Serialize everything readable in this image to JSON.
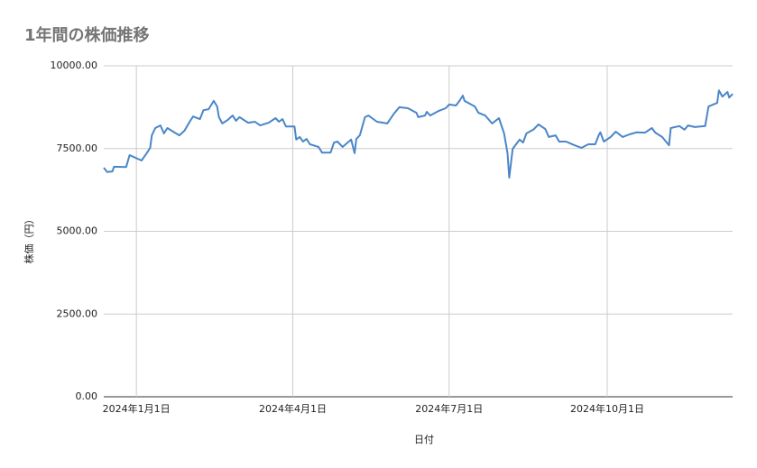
{
  "chart_data": {
    "type": "line",
    "title": "1年間の株価推移",
    "x_label": "日付",
    "y_label": "株価（円）",
    "grid": true,
    "xlim": [
      "2023-12-13",
      "2024-12-13"
    ],
    "xticks": [
      {
        "value": "2024-01-01",
        "label": "2024年1月1日"
      },
      {
        "value": "2024-04-01",
        "label": "2024年4月1日"
      },
      {
        "value": "2024-07-01",
        "label": "2024年7月1日"
      },
      {
        "value": "2024-10-01",
        "label": "2024年10月1日"
      }
    ],
    "ylim": [
      0,
      10000
    ],
    "yticks": [
      {
        "value": 0,
        "label": "0.00"
      },
      {
        "value": 2500,
        "label": "2500.00"
      },
      {
        "value": 5000,
        "label": "5000.00"
      },
      {
        "value": 7500,
        "label": "7500.00"
      },
      {
        "value": 10000,
        "label": "10000.00"
      }
    ],
    "x": [
      "2023-12-13",
      "2023-12-15",
      "2023-12-18",
      "2023-12-19",
      "2023-12-26",
      "2023-12-28",
      "2024-01-04",
      "2024-01-07",
      "2024-01-09",
      "2024-01-10",
      "2024-01-12",
      "2024-01-15",
      "2024-01-17",
      "2024-01-19",
      "2024-01-24",
      "2024-01-26",
      "2024-01-29",
      "2024-02-01",
      "2024-02-03",
      "2024-02-07",
      "2024-02-09",
      "2024-02-12",
      "2024-02-15",
      "2024-02-17",
      "2024-02-18",
      "2024-02-20",
      "2024-02-23",
      "2024-02-26",
      "2024-02-28",
      "2024-03-01",
      "2024-03-06",
      "2024-03-10",
      "2024-03-13",
      "2024-03-18",
      "2024-03-22",
      "2024-03-24",
      "2024-03-26",
      "2024-03-28",
      "2024-04-02",
      "2024-04-03",
      "2024-04-05",
      "2024-04-07",
      "2024-04-09",
      "2024-04-11",
      "2024-04-16",
      "2024-04-18",
      "2024-04-23",
      "2024-04-25",
      "2024-04-27",
      "2024-04-30",
      "2024-05-05",
      "2024-05-07",
      "2024-05-08",
      "2024-05-10",
      "2024-05-13",
      "2024-05-15",
      "2024-05-20",
      "2024-05-26",
      "2024-05-30",
      "2024-06-02",
      "2024-06-07",
      "2024-06-12",
      "2024-06-13",
      "2024-06-17",
      "2024-06-18",
      "2024-06-20",
      "2024-06-25",
      "2024-06-29",
      "2024-07-01",
      "2024-07-05",
      "2024-07-07",
      "2024-07-09",
      "2024-07-10",
      "2024-07-16",
      "2024-07-18",
      "2024-07-22",
      "2024-07-26",
      "2024-07-30",
      "2024-08-02",
      "2024-08-04",
      "2024-08-05",
      "2024-08-07",
      "2024-08-09",
      "2024-08-11",
      "2024-08-13",
      "2024-08-15",
      "2024-08-19",
      "2024-08-22",
      "2024-08-26",
      "2024-08-28",
      "2024-09-01",
      "2024-09-03",
      "2024-09-07",
      "2024-09-12",
      "2024-09-16",
      "2024-09-20",
      "2024-09-24",
      "2024-09-26",
      "2024-09-27",
      "2024-09-29",
      "2024-10-03",
      "2024-10-06",
      "2024-10-10",
      "2024-10-14",
      "2024-10-18",
      "2024-10-23",
      "2024-10-27",
      "2024-10-29",
      "2024-11-02",
      "2024-11-06",
      "2024-11-07",
      "2024-11-12",
      "2024-11-15",
      "2024-11-17",
      "2024-11-21",
      "2024-11-27",
      "2024-11-29",
      "2024-12-04",
      "2024-12-05",
      "2024-12-07",
      "2024-12-10",
      "2024-12-11",
      "2024-12-13"
    ],
    "series": [
      {
        "name": "株価（円）",
        "color": "#4a86c8",
        "values": [
          6920,
          6790,
          6810,
          6950,
          6940,
          7300,
          7140,
          7360,
          7520,
          7900,
          8120,
          8200,
          7960,
          8120,
          7960,
          7900,
          8040,
          8310,
          8470,
          8390,
          8660,
          8690,
          8940,
          8770,
          8450,
          8260,
          8360,
          8500,
          8340,
          8450,
          8280,
          8310,
          8200,
          8280,
          8420,
          8310,
          8390,
          8170,
          8170,
          7770,
          7850,
          7710,
          7790,
          7630,
          7550,
          7380,
          7380,
          7680,
          7710,
          7550,
          7770,
          7360,
          7790,
          7900,
          8450,
          8500,
          8310,
          8260,
          8560,
          8750,
          8720,
          8580,
          8450,
          8500,
          8610,
          8500,
          8640,
          8720,
          8830,
          8800,
          8940,
          9100,
          8940,
          8770,
          8580,
          8500,
          8260,
          8420,
          7960,
          7360,
          6620,
          7490,
          7630,
          7770,
          7680,
          7960,
          8070,
          8230,
          8090,
          7850,
          7900,
          7710,
          7710,
          7600,
          7520,
          7630,
          7630,
          7900,
          7990,
          7710,
          7850,
          8010,
          7850,
          7930,
          7990,
          7980,
          8120,
          7980,
          7850,
          7600,
          8120,
          8180,
          8070,
          8200,
          8150,
          8180,
          8770,
          8880,
          9260,
          9070,
          9210,
          9040,
          9150
        ]
      }
    ]
  }
}
